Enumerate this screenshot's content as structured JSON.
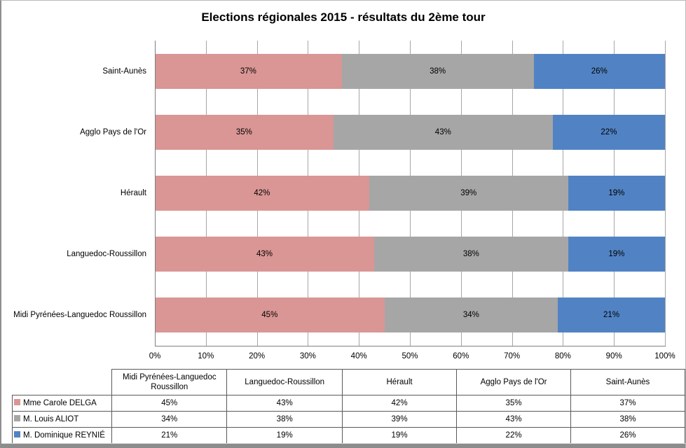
{
  "chart_data": {
    "type": "bar",
    "stacked": "100%",
    "orientation": "horizontal",
    "title": "Elections régionales 2015 - résultats du 2ème tour",
    "grid": "vertical-only",
    "xlim": [
      0,
      100
    ],
    "x_ticks": [
      "0%",
      "10%",
      "20%",
      "30%",
      "40%",
      "50%",
      "60%",
      "70%",
      "80%",
      "90%",
      "100%"
    ],
    "categories_top_to_bottom": [
      "Saint-Aunès",
      "Agglo Pays de l'Or",
      "Hérault",
      "Languedoc-Roussillon",
      "Midi Pyrénées-Languedoc Roussillon"
    ],
    "series": [
      {
        "name": "Mme Carole DELGA",
        "color": "#D99694",
        "values": [
          37,
          35,
          42,
          43,
          45
        ]
      },
      {
        "name": "M. Louis ALIOT",
        "color": "#A6A6A6",
        "values": [
          38,
          43,
          39,
          38,
          34
        ]
      },
      {
        "name": "M. Dominique REYNIÉ",
        "color": "#5183C4",
        "values": [
          26,
          22,
          19,
          19,
          21
        ]
      }
    ],
    "data_label_format": "percent",
    "legend_position": "table-left"
  },
  "table": {
    "columns": [
      "Midi Pyrénées-Languedoc Roussillon",
      "Languedoc-Roussillon",
      "Hérault",
      "Agglo Pays de l'Or",
      "Saint-Aunès"
    ],
    "rows": [
      {
        "name": "Mme Carole DELGA",
        "color": "#D99694",
        "values": [
          "45%",
          "43%",
          "42%",
          "35%",
          "37%"
        ]
      },
      {
        "name": "M. Louis ALIOT",
        "color": "#A6A6A6",
        "values": [
          "34%",
          "38%",
          "39%",
          "43%",
          "38%"
        ]
      },
      {
        "name": "M. Dominique REYNIÉ",
        "color": "#5183C4",
        "values": [
          "21%",
          "19%",
          "19%",
          "22%",
          "26%"
        ]
      }
    ]
  }
}
